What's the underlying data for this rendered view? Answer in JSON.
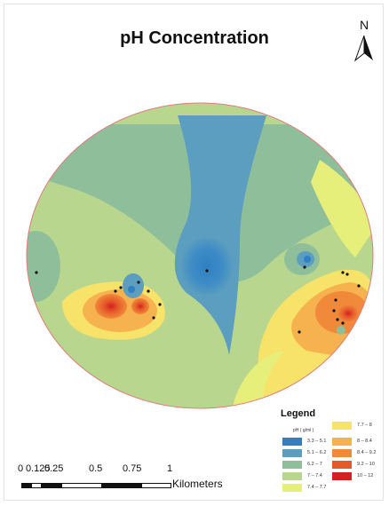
{
  "title": "pH Concentration",
  "north_label": "N",
  "legend": {
    "title": "Legend",
    "units": "pH ( g/ml )",
    "items": [
      {
        "label": "3.3 – 5.1",
        "color": "#2f7fc2"
      },
      {
        "label": "5.1 – 6.2",
        "color": "#5b9ebf"
      },
      {
        "label": "6.2 – 7",
        "color": "#8fbf9a"
      },
      {
        "label": "7 – 7.4",
        "color": "#b8d68e"
      },
      {
        "label": "7.4 – 7.7",
        "color": "#e6ef7a"
      },
      {
        "label": "7.7 – 8",
        "color": "#f7e26a"
      },
      {
        "label": "8 – 8.4",
        "color": "#f6b24e"
      },
      {
        "label": "8.4 – 9.2",
        "color": "#f08a3a"
      },
      {
        "label": "9.2 – 10",
        "color": "#e65a2a"
      },
      {
        "label": "10 – 12",
        "color": "#d42020"
      }
    ]
  },
  "scale_bar": {
    "ticks": [
      "0",
      "0.125",
      "0.25",
      "0.5",
      "0.75",
      "1"
    ],
    "unit": "Kilometers"
  }
}
